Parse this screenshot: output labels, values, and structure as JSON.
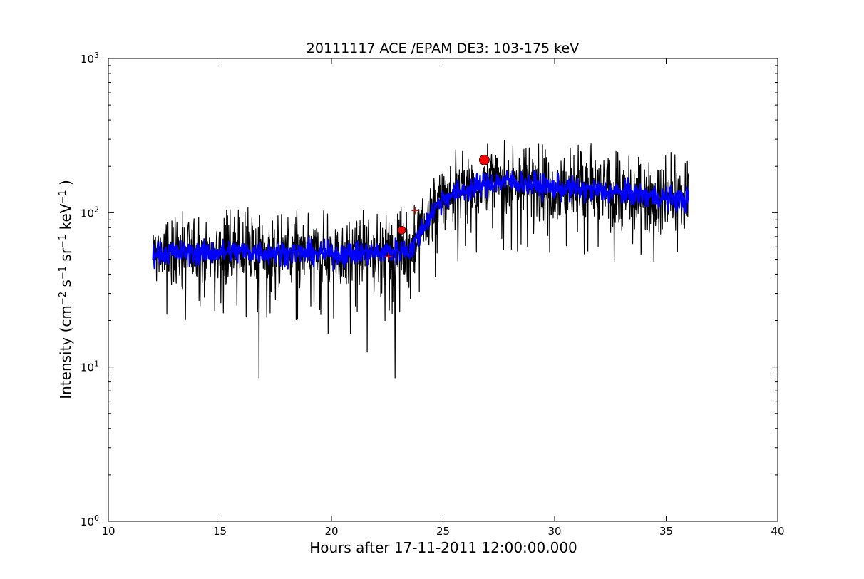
{
  "chart_data": {
    "type": "line",
    "title": "20111117 ACE /EPAM DE3: 103-175 keV",
    "xlabel": "Hours after 17-11-2011 12:00:00.000",
    "ylabel_parts": {
      "prefix": "Intensity (cm",
      "e1": "−2",
      "s": " s",
      "e2": "−1",
      "sr": " sr",
      "e3": "−1",
      "kev": " keV",
      "e4": "−1",
      "suffix": " )"
    },
    "x_ticks": [
      "10",
      "15",
      "20",
      "25",
      "30",
      "35",
      "40"
    ],
    "y_ticks": [
      {
        "base": "10",
        "exp": "0"
      },
      {
        "base": "10",
        "exp": "1"
      },
      {
        "base": "10",
        "exp": "2"
      },
      {
        "base": "10",
        "exp": "3"
      }
    ],
    "xlim": [
      10,
      40
    ],
    "ylim": [
      1,
      1000
    ],
    "yscale": "log",
    "grid": false,
    "series": [
      {
        "color": "#000000",
        "profile": [
          [
            12.0,
            55
          ],
          [
            14.0,
            55
          ],
          [
            16.0,
            56
          ],
          [
            18.0,
            55
          ],
          [
            20.0,
            54
          ],
          [
            22.0,
            55
          ],
          [
            23.6,
            58
          ],
          [
            24.0,
            75
          ],
          [
            24.5,
            100
          ],
          [
            25.0,
            125
          ],
          [
            26.0,
            140
          ],
          [
            27.0,
            155
          ],
          [
            28.0,
            160
          ],
          [
            30.0,
            145
          ],
          [
            32.0,
            138
          ],
          [
            34.0,
            130
          ],
          [
            36.0,
            120
          ]
        ],
        "spikes": [
          [
            16.75,
            8.5
          ],
          [
            22.85,
            8.5
          ],
          [
            21.6,
            12.5
          ],
          [
            20.85,
            16.5
          ],
          [
            19.85,
            16.5
          ],
          [
            22.4,
            20.0
          ],
          [
            17.1,
            21.0
          ],
          [
            27.75,
            295
          ],
          [
            35.95,
            215
          ],
          [
            33.5,
            63
          ]
        ]
      },
      {
        "color": "#0000ff",
        "profile": [
          [
            12.0,
            55
          ],
          [
            14.0,
            55
          ],
          [
            16.0,
            56
          ],
          [
            18.0,
            55
          ],
          [
            20.0,
            54
          ],
          [
            22.0,
            55
          ],
          [
            23.6,
            58
          ],
          [
            24.0,
            75
          ],
          [
            24.5,
            100
          ],
          [
            25.0,
            125
          ],
          [
            26.0,
            140
          ],
          [
            27.0,
            155
          ],
          [
            28.0,
            160
          ],
          [
            30.0,
            145
          ],
          [
            32.0,
            138
          ],
          [
            34.0,
            130
          ],
          [
            36.0,
            120
          ]
        ]
      }
    ],
    "markers": [
      {
        "shape": "circle",
        "color": "#ff0000",
        "x": 26.85,
        "y": 220
      },
      {
        "shape": "circle",
        "color": "#ff0000",
        "x": 23.15,
        "y": 77
      },
      {
        "shape": "plus",
        "color": "#ff0000",
        "x": 23.75,
        "y": 103
      },
      {
        "shape": "plus",
        "color": "#ff0000",
        "x": 22.55,
        "y": 52
      }
    ]
  }
}
